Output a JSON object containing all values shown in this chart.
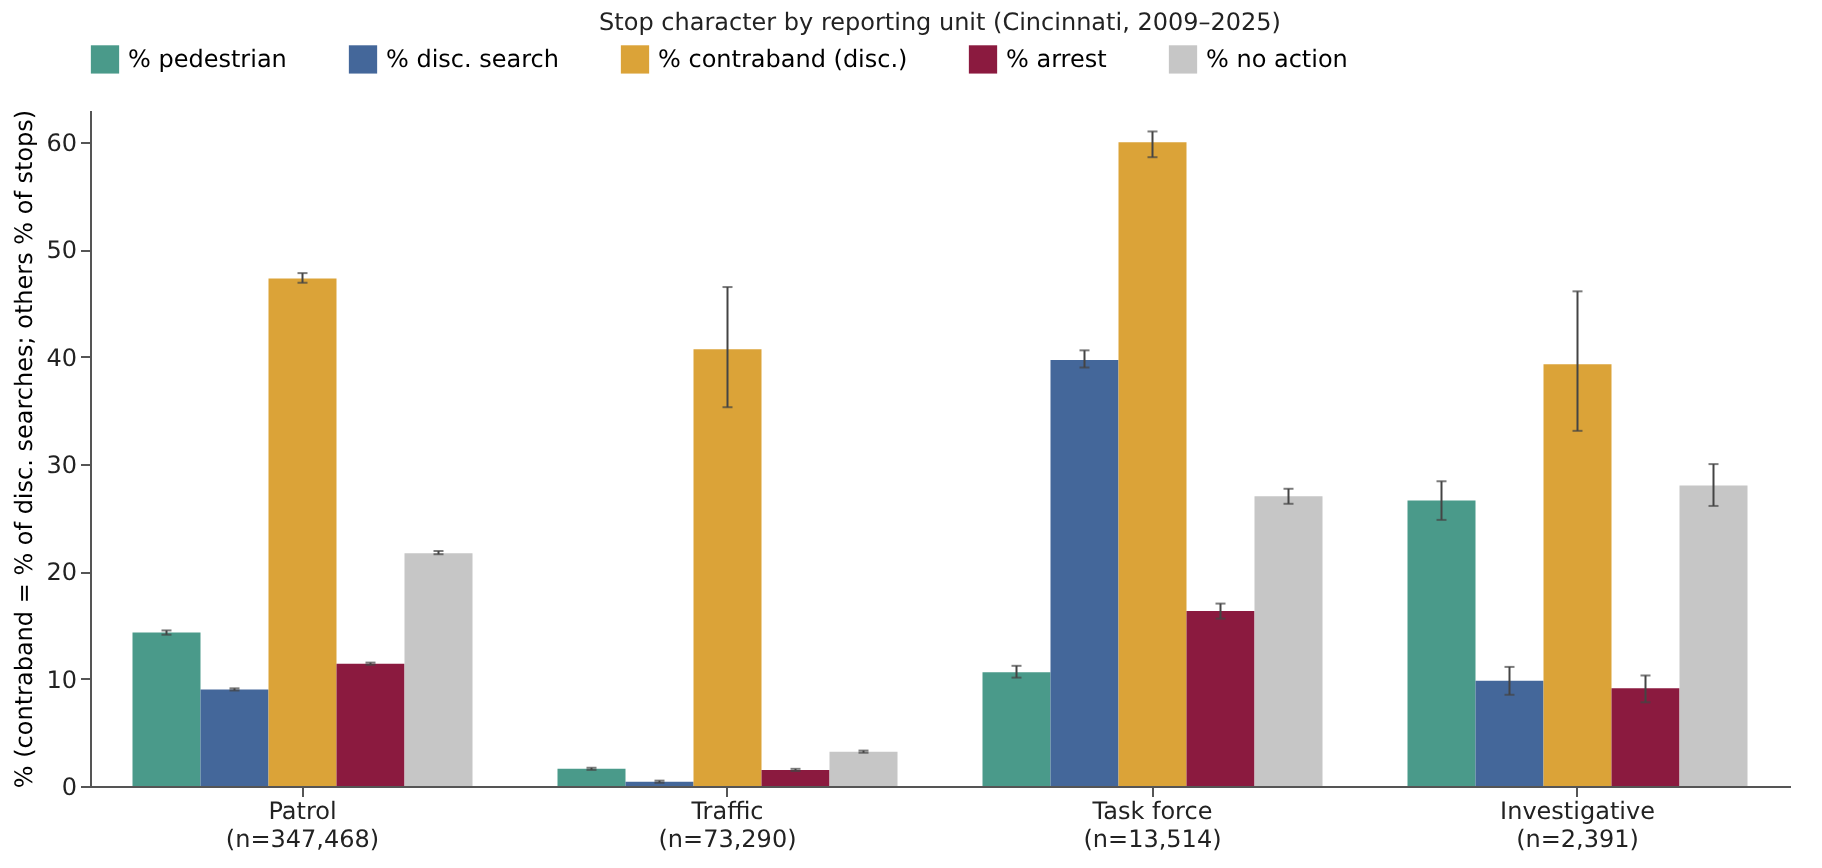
{
  "chart_data": {
    "type": "bar",
    "title": "Stop character by reporting unit (Cincinnati, 2009–2025)",
    "ylabel": "%  (contraband = % of disc. searches; others % of stops)",
    "categories": [
      "Patrol\n(n=347,468)",
      "Traffic\n(n=73,290)",
      "Task force\n(n=13,514)",
      "Investigative\n(n=2,391)"
    ],
    "series": [
      {
        "name": "% pedestrian",
        "color": "#4a9a8a",
        "values": [
          14.3,
          1.6,
          10.6,
          26.6
        ],
        "errors": [
          [
            14.1,
            14.5
          ],
          [
            1.5,
            1.7
          ],
          [
            10.1,
            11.2
          ],
          [
            24.8,
            28.4
          ]
        ]
      },
      {
        "name": "% disc. search",
        "color": "#44679a",
        "values": [
          9.0,
          0.4,
          39.7,
          9.8
        ],
        "errors": [
          [
            8.9,
            9.1
          ],
          [
            0.3,
            0.5
          ],
          [
            39.0,
            40.6
          ],
          [
            8.5,
            11.1
          ]
        ]
      },
      {
        "name": "% contraband (disc.)",
        "color": "#dba338",
        "values": [
          47.3,
          40.7,
          60.0,
          39.3
        ],
        "errors": [
          [
            46.9,
            47.8
          ],
          [
            35.3,
            46.5
          ],
          [
            58.6,
            61.0
          ],
          [
            33.1,
            46.1
          ]
        ]
      },
      {
        "name": "% arrest",
        "color": "#8b1a3f",
        "values": [
          11.4,
          1.5,
          16.3,
          9.1
        ],
        "errors": [
          [
            11.3,
            11.5
          ],
          [
            1.4,
            1.6
          ],
          [
            15.6,
            17.0
          ],
          [
            7.8,
            10.3
          ]
        ]
      },
      {
        "name": "% no action",
        "color": "#c6c6c6",
        "values": [
          21.7,
          3.2,
          27.0,
          28.0
        ],
        "errors": [
          [
            21.6,
            21.9
          ],
          [
            3.1,
            3.3
          ],
          [
            26.3,
            27.7
          ],
          [
            26.1,
            30.0
          ]
        ]
      }
    ],
    "ylim": [
      0,
      63
    ],
    "yticks": [
      0,
      10,
      20,
      30,
      40,
      50,
      60
    ],
    "grid": false,
    "legend": "top"
  }
}
